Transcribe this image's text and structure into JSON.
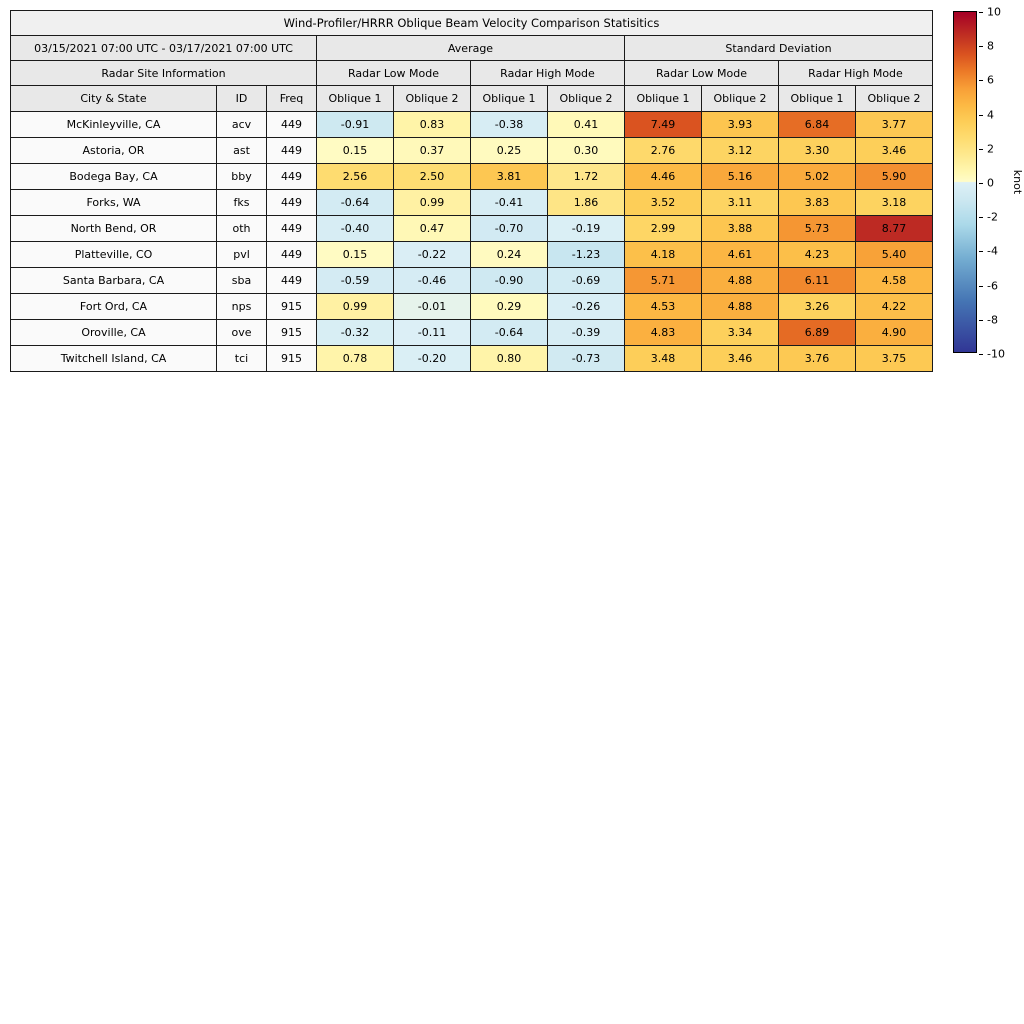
{
  "title": "Wind-Profiler/HRRR Oblique Beam Velocity Comparison Statisitics",
  "header": {
    "date_range": "03/15/2021 07:00 UTC - 03/17/2021 07:00 UTC",
    "group_average": "Average",
    "group_std": "Standard Deviation",
    "site_info": "Radar Site Information",
    "modes": [
      "Radar Low Mode",
      "Radar High Mode",
      "Radar Low Mode",
      "Radar High Mode"
    ],
    "columns": [
      "City & State",
      "ID",
      "Freq",
      "Oblique 1",
      "Oblique 2",
      "Oblique 1",
      "Oblique 2",
      "Oblique 1",
      "Oblique 2",
      "Oblique 1",
      "Oblique 2"
    ]
  },
  "chart_data": {
    "type": "heatmap-table",
    "title": "Wind-Profiler/HRRR Oblique Beam Velocity Comparison Statisitics",
    "unit": "knot",
    "value_columns": [
      "Average Radar Low Mode Oblique 1",
      "Average Radar Low Mode Oblique 2",
      "Average Radar High Mode Oblique 1",
      "Average Radar High Mode Oblique 2",
      "Std Dev Radar Low Mode Oblique 1",
      "Std Dev Radar Low Mode Oblique 2",
      "Std Dev Radar High Mode Oblique 1",
      "Std Dev Radar High Mode Oblique 2"
    ],
    "rows": [
      {
        "city": "McKinleyville, CA",
        "id": "acv",
        "freq": "449",
        "values": [
          -0.91,
          0.83,
          -0.38,
          0.41,
          7.49,
          3.93,
          6.84,
          3.77
        ]
      },
      {
        "city": "Astoria, OR",
        "id": "ast",
        "freq": "449",
        "values": [
          0.15,
          0.37,
          0.25,
          0.3,
          2.76,
          3.12,
          3.3,
          3.46
        ]
      },
      {
        "city": "Bodega Bay, CA",
        "id": "bby",
        "freq": "449",
        "values": [
          2.56,
          2.5,
          3.81,
          1.72,
          4.46,
          5.16,
          5.02,
          5.9
        ]
      },
      {
        "city": "Forks, WA",
        "id": "fks",
        "freq": "449",
        "values": [
          -0.64,
          0.99,
          -0.41,
          1.86,
          3.52,
          3.11,
          3.83,
          3.18
        ]
      },
      {
        "city": "North Bend, OR",
        "id": "oth",
        "freq": "449",
        "values": [
          -0.4,
          0.47,
          -0.7,
          -0.19,
          2.99,
          3.88,
          5.73,
          8.77
        ]
      },
      {
        "city": "Platteville, CO",
        "id": "pvl",
        "freq": "449",
        "values": [
          0.15,
          -0.22,
          0.24,
          -1.23,
          4.18,
          4.61,
          4.23,
          5.4
        ]
      },
      {
        "city": "Santa Barbara, CA",
        "id": "sba",
        "freq": "449",
        "values": [
          -0.59,
          -0.46,
          -0.9,
          -0.69,
          5.71,
          4.88,
          6.11,
          4.58
        ]
      },
      {
        "city": "Fort Ord, CA",
        "id": "nps",
        "freq": "915",
        "values": [
          0.99,
          -0.01,
          0.29,
          -0.26,
          4.53,
          4.88,
          3.26,
          4.22
        ]
      },
      {
        "city": "Oroville, CA",
        "id": "ove",
        "freq": "915",
        "values": [
          -0.32,
          -0.11,
          -0.64,
          -0.39,
          4.83,
          3.34,
          6.89,
          4.9
        ]
      },
      {
        "city": "Twitchell Island, CA",
        "id": "tci",
        "freq": "915",
        "values": [
          0.78,
          -0.2,
          0.8,
          -0.73,
          3.48,
          3.46,
          3.76,
          3.75
        ]
      }
    ]
  },
  "colorbar": {
    "label": "knot",
    "vmin": -10,
    "vmax": 10,
    "ticks": [
      10,
      8,
      6,
      4,
      2,
      0,
      -2,
      -4,
      -6,
      -8,
      -10
    ],
    "stops": [
      [
        -10,
        "#313695"
      ],
      [
        -7,
        "#4575b4"
      ],
      [
        -4.5,
        "#74add1"
      ],
      [
        -2.5,
        "#abd9e9"
      ],
      [
        -1,
        "#cde8f1"
      ],
      [
        -0.02,
        "#ddf0f6"
      ],
      [
        0.02,
        "#fffcc9"
      ],
      [
        0.6,
        "#fff7b0"
      ],
      [
        1.5,
        "#feea92"
      ],
      [
        2.5,
        "#fedd72"
      ],
      [
        3.5,
        "#fdce58"
      ],
      [
        4.5,
        "#fcb944"
      ],
      [
        5.5,
        "#f89f37"
      ],
      [
        6.5,
        "#ec7a27"
      ],
      [
        7.5,
        "#da5320"
      ],
      [
        8.5,
        "#c23322"
      ],
      [
        10,
        "#a50026"
      ]
    ]
  }
}
